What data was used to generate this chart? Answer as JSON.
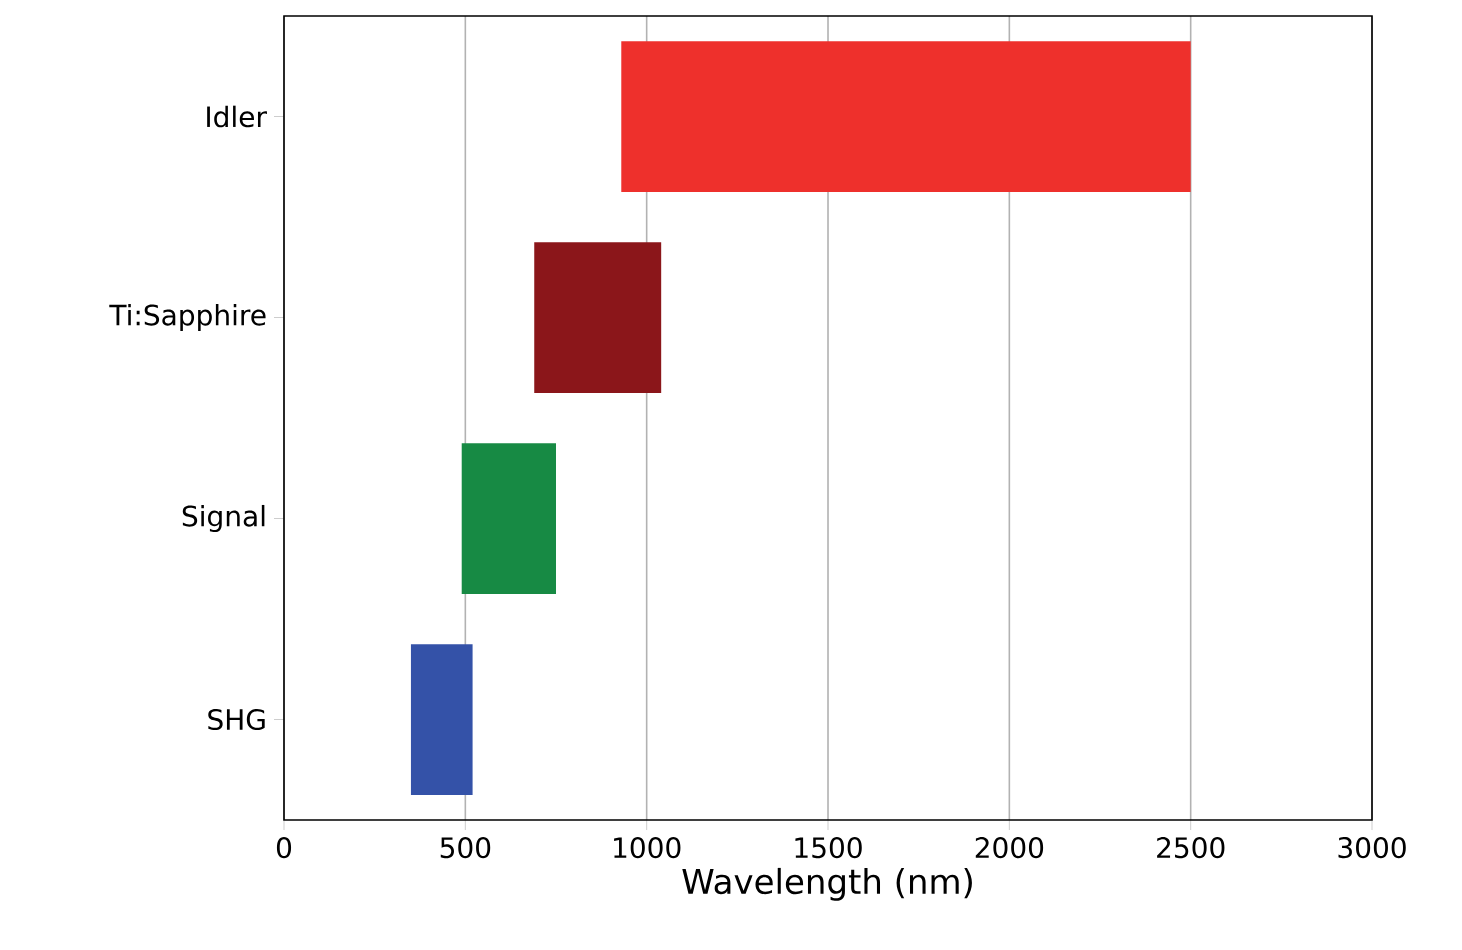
{
  "chart_data": {
    "type": "bar",
    "orientation": "horizontal",
    "xlabel": "Wavelength (nm)",
    "categories": [
      "Idler",
      "Ti:Sapphire",
      "Signal",
      "SHG"
    ],
    "base": [
      930,
      690,
      490,
      350
    ],
    "values": [
      1570,
      350,
      260,
      170
    ],
    "colors": [
      "#ee302c",
      "#8b161a",
      "#178a44",
      "#3452a8"
    ],
    "xlim": [
      0,
      3000
    ],
    "xticks": [
      0,
      500,
      1000,
      1500,
      2000,
      2500,
      3000
    ],
    "grid": "x"
  }
}
